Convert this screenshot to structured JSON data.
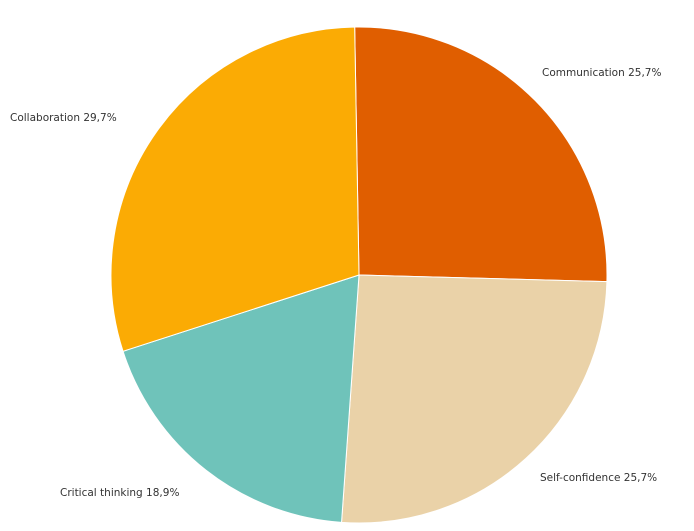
{
  "chart_data": {
    "type": "pie",
    "title": "",
    "slices": [
      {
        "name": "Communication",
        "value": 25.7,
        "label": "Communication  25,7%",
        "color": "#e05e00"
      },
      {
        "name": "Self-confidence",
        "value": 25.7,
        "label": "Self-confidence  25,7%",
        "color": "#ead2a8"
      },
      {
        "name": "Critical thinking",
        "value": 18.9,
        "label": "Critical thinking  18,9%",
        "color": "#6fc3ba"
      },
      {
        "name": "Collaboration",
        "value": 29.7,
        "label": "Collaboration  29,7%",
        "color": "#fbab04"
      }
    ],
    "start_angle_deg": -1,
    "direction": "clockwise",
    "legend": "none"
  }
}
